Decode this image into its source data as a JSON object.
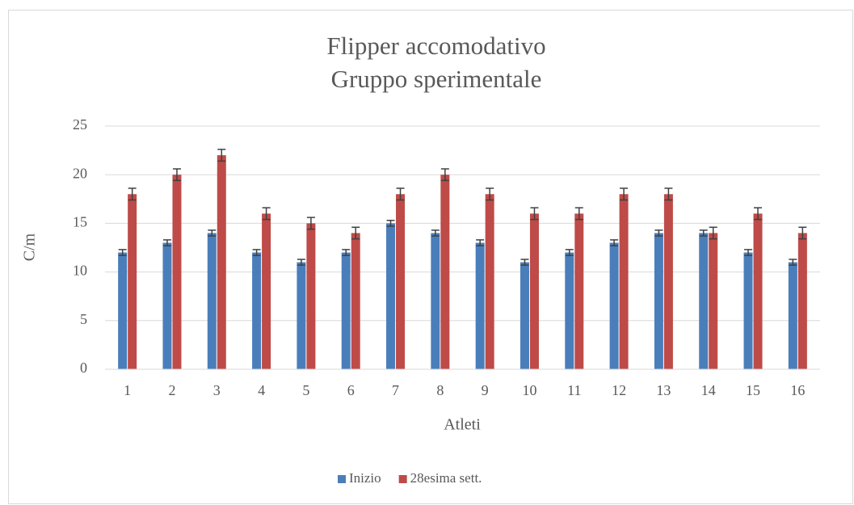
{
  "chart_data": {
    "type": "bar",
    "title": [
      "Flipper accomodativo",
      "Gruppo sperimentale"
    ],
    "xlabel": "Atleti",
    "ylabel": "C/m",
    "categories": [
      "1",
      "2",
      "3",
      "4",
      "5",
      "6",
      "7",
      "8",
      "9",
      "10",
      "11",
      "12",
      "13",
      "14",
      "15",
      "16"
    ],
    "series": [
      {
        "name": "Inizio",
        "color": "#4a7ebb",
        "values": [
          12,
          13,
          14,
          12,
          11,
          12,
          15,
          14,
          13,
          11,
          12,
          13,
          14,
          14,
          12,
          11
        ],
        "errors": [
          0.3,
          0.3,
          0.3,
          0.3,
          0.3,
          0.3,
          0.3,
          0.3,
          0.3,
          0.3,
          0.3,
          0.3,
          0.3,
          0.3,
          0.3,
          0.3
        ]
      },
      {
        "name": "28esima sett.",
        "color": "#be4b48",
        "values": [
          18,
          20,
          22,
          16,
          15,
          14,
          18,
          20,
          18,
          16,
          16,
          18,
          18,
          14,
          16,
          14
        ],
        "errors": [
          0.6,
          0.6,
          0.6,
          0.6,
          0.6,
          0.6,
          0.6,
          0.6,
          0.6,
          0.6,
          0.6,
          0.6,
          0.6,
          0.6,
          0.6,
          0.6
        ]
      }
    ],
    "ylim": [
      0,
      25
    ],
    "yticks": [
      0,
      5,
      10,
      15,
      20,
      25
    ],
    "grid": true,
    "legend": "bottom"
  }
}
